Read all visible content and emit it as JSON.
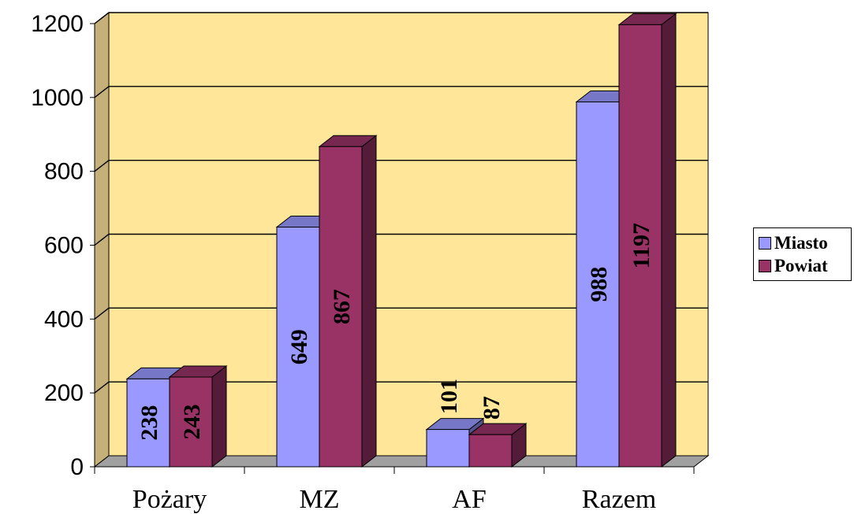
{
  "chart_data": {
    "type": "bar",
    "categories": [
      "Pożary",
      "MZ",
      "AF",
      "Razem"
    ],
    "series": [
      {
        "name": "Miasto",
        "values": [
          238,
          649,
          101,
          988
        ],
        "color": "#9999FF"
      },
      {
        "name": "Powiat",
        "values": [
          243,
          867,
          87,
          1197
        ],
        "color": "#993366"
      }
    ],
    "ylim": [
      0,
      1200
    ],
    "yticks": [
      0,
      200,
      400,
      600,
      800,
      1000,
      1200
    ],
    "title": "",
    "xlabel": "",
    "ylabel": "",
    "grid": true,
    "legend_position": "right",
    "three_d": true,
    "colors": {
      "wall": "#FFE699",
      "side_wall": "#C4B078",
      "floor": "#A0A0A0",
      "gridline": "#000000"
    }
  }
}
